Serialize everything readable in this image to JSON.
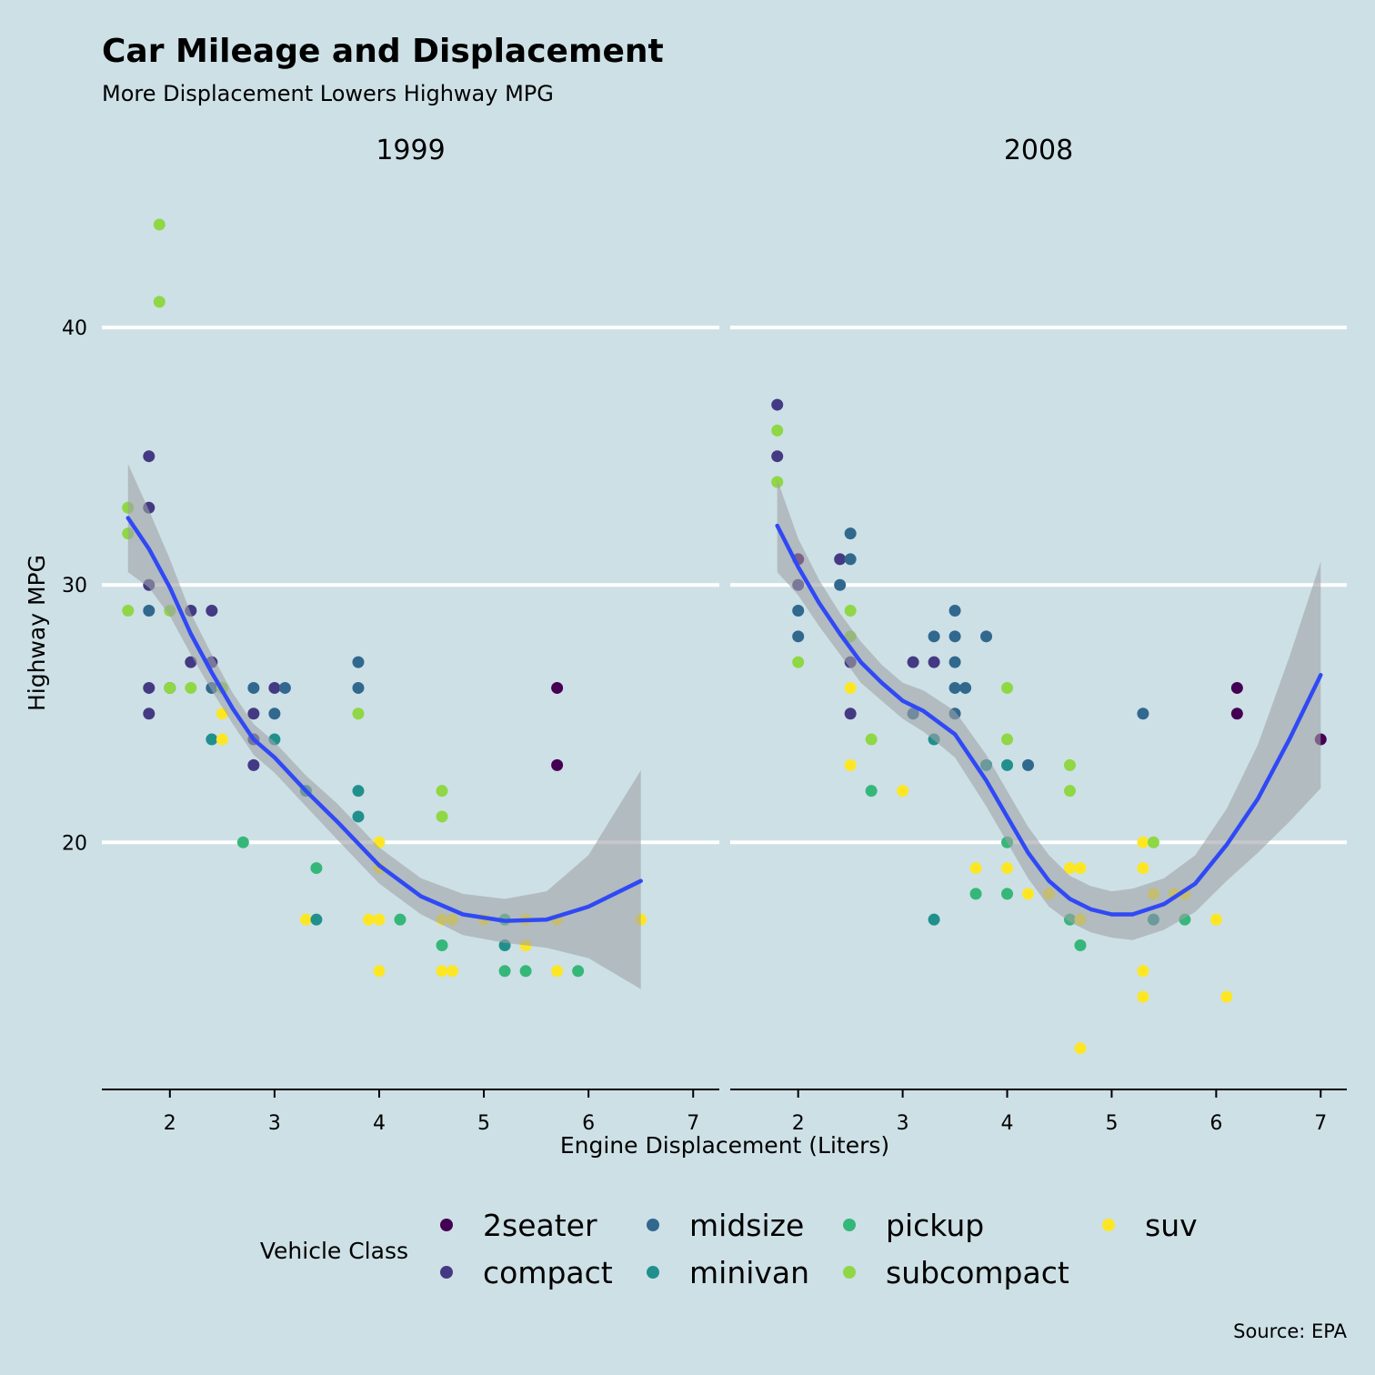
{
  "title": "Car Mileage and Displacement",
  "subtitle": "More Displacement Lowers Highway MPG",
  "caption": "Source: EPA",
  "legend": {
    "title": "Vehicle Class",
    "items": [
      {
        "label": "2seater",
        "color": "#440154"
      },
      {
        "label": "compact",
        "color": "#443a83"
      },
      {
        "label": "midsize",
        "color": "#31688e"
      },
      {
        "label": "minivan",
        "color": "#21908d"
      },
      {
        "label": "pickup",
        "color": "#35b779"
      },
      {
        "label": "subcompact",
        "color": "#8fd744"
      },
      {
        "label": "suv",
        "color": "#fde725"
      }
    ]
  },
  "colors": {
    "background": "#cde0e6",
    "gridline": "#ffffff",
    "smooth_line": "#3049f5",
    "ribbon": "#9ea2a6"
  },
  "chart_data": {
    "type": "scatter",
    "xlabel": "Engine Displacement (Liters)",
    "ylabel": "Highway MPG",
    "xlim": [
      1.35,
      7.25
    ],
    "ylim": [
      10.4,
      45.8
    ],
    "xticks": [
      2,
      3,
      4,
      5,
      6,
      7
    ],
    "yticks": [
      20,
      30,
      40
    ],
    "grid": "horizontal major",
    "legend_position": "bottom",
    "facets": [
      {
        "label": "1999",
        "points": [
          {
            "x": 1.6,
            "y": 33,
            "class": "subcompact"
          },
          {
            "x": 1.6,
            "y": 32,
            "class": "subcompact"
          },
          {
            "x": 1.6,
            "y": 29,
            "class": "subcompact"
          },
          {
            "x": 1.8,
            "y": 35,
            "class": "compact"
          },
          {
            "x": 1.8,
            "y": 33,
            "class": "compact"
          },
          {
            "x": 1.8,
            "y": 30,
            "class": "compact"
          },
          {
            "x": 1.8,
            "y": 29,
            "class": "midsize"
          },
          {
            "x": 1.8,
            "y": 26,
            "class": "compact"
          },
          {
            "x": 1.8,
            "y": 25,
            "class": "compact"
          },
          {
            "x": 1.9,
            "y": 44,
            "class": "subcompact"
          },
          {
            "x": 1.9,
            "y": 41,
            "class": "subcompact"
          },
          {
            "x": 2.0,
            "y": 29,
            "class": "subcompact"
          },
          {
            "x": 2.0,
            "y": 26,
            "class": "compact"
          },
          {
            "x": 2.0,
            "y": 26,
            "class": "subcompact"
          },
          {
            "x": 2.2,
            "y": 29,
            "class": "compact"
          },
          {
            "x": 2.2,
            "y": 27,
            "class": "compact"
          },
          {
            "x": 2.2,
            "y": 26,
            "class": "subcompact"
          },
          {
            "x": 2.4,
            "y": 29,
            "class": "compact"
          },
          {
            "x": 2.4,
            "y": 27,
            "class": "compact"
          },
          {
            "x": 2.4,
            "y": 26,
            "class": "midsize"
          },
          {
            "x": 2.4,
            "y": 24,
            "class": "minivan"
          },
          {
            "x": 2.5,
            "y": 26,
            "class": "subcompact"
          },
          {
            "x": 2.5,
            "y": 25,
            "class": "suv"
          },
          {
            "x": 2.5,
            "y": 24,
            "class": "suv"
          },
          {
            "x": 2.7,
            "y": 20,
            "class": "pickup"
          },
          {
            "x": 2.8,
            "y": 26,
            "class": "midsize"
          },
          {
            "x": 2.8,
            "y": 25,
            "class": "compact"
          },
          {
            "x": 2.8,
            "y": 24,
            "class": "compact"
          },
          {
            "x": 2.8,
            "y": 23,
            "class": "compact"
          },
          {
            "x": 3.0,
            "y": 26,
            "class": "compact"
          },
          {
            "x": 3.0,
            "y": 25,
            "class": "midsize"
          },
          {
            "x": 3.0,
            "y": 24,
            "class": "minivan"
          },
          {
            "x": 3.1,
            "y": 26,
            "class": "midsize"
          },
          {
            "x": 3.3,
            "y": 22,
            "class": "minivan"
          },
          {
            "x": 3.3,
            "y": 17,
            "class": "suv"
          },
          {
            "x": 3.4,
            "y": 19,
            "class": "pickup"
          },
          {
            "x": 3.4,
            "y": 17,
            "class": "minivan"
          },
          {
            "x": 3.8,
            "y": 27,
            "class": "midsize"
          },
          {
            "x": 3.8,
            "y": 26,
            "class": "midsize"
          },
          {
            "x": 3.8,
            "y": 25,
            "class": "subcompact"
          },
          {
            "x": 3.8,
            "y": 22,
            "class": "minivan"
          },
          {
            "x": 3.8,
            "y": 21,
            "class": "minivan"
          },
          {
            "x": 3.9,
            "y": 17,
            "class": "suv"
          },
          {
            "x": 4.0,
            "y": 20,
            "class": "suv"
          },
          {
            "x": 4.0,
            "y": 19,
            "class": "suv"
          },
          {
            "x": 4.0,
            "y": 17,
            "class": "suv"
          },
          {
            "x": 4.0,
            "y": 15,
            "class": "suv"
          },
          {
            "x": 4.2,
            "y": 17,
            "class": "pickup"
          },
          {
            "x": 4.6,
            "y": 22,
            "class": "subcompact"
          },
          {
            "x": 4.6,
            "y": 21,
            "class": "subcompact"
          },
          {
            "x": 4.6,
            "y": 17,
            "class": "suv"
          },
          {
            "x": 4.6,
            "y": 16,
            "class": "pickup"
          },
          {
            "x": 4.6,
            "y": 15,
            "class": "suv"
          },
          {
            "x": 4.7,
            "y": 17,
            "class": "suv"
          },
          {
            "x": 4.7,
            "y": 15,
            "class": "suv"
          },
          {
            "x": 5.0,
            "y": 17,
            "class": "suv"
          },
          {
            "x": 5.2,
            "y": 17,
            "class": "pickup"
          },
          {
            "x": 5.2,
            "y": 16,
            "class": "minivan"
          },
          {
            "x": 5.2,
            "y": 15,
            "class": "pickup"
          },
          {
            "x": 5.4,
            "y": 17,
            "class": "suv"
          },
          {
            "x": 5.4,
            "y": 16,
            "class": "suv"
          },
          {
            "x": 5.4,
            "y": 15,
            "class": "pickup"
          },
          {
            "x": 5.7,
            "y": 26,
            "class": "2seater"
          },
          {
            "x": 5.7,
            "y": 23,
            "class": "2seater"
          },
          {
            "x": 5.7,
            "y": 17,
            "class": "suv"
          },
          {
            "x": 5.7,
            "y": 15,
            "class": "suv"
          },
          {
            "x": 5.9,
            "y": 15,
            "class": "pickup"
          },
          {
            "x": 6.5,
            "y": 17,
            "class": "suv"
          }
        ],
        "smooth": {
          "x": [
            1.6,
            1.8,
            2.0,
            2.2,
            2.4,
            2.6,
            2.8,
            3.0,
            3.3,
            3.6,
            4.0,
            4.4,
            4.8,
            5.2,
            5.6,
            6.0,
            6.5
          ],
          "y": [
            32.6,
            31.4,
            29.9,
            28.1,
            26.6,
            25.2,
            24.0,
            23.3,
            22.0,
            20.8,
            19.1,
            17.9,
            17.2,
            16.95,
            17.0,
            17.5,
            18.5
          ],
          "lower": [
            30.5,
            29.9,
            28.8,
            27.3,
            25.9,
            24.6,
            23.4,
            22.7,
            21.4,
            20.1,
            18.4,
            17.2,
            16.4,
            16.1,
            15.9,
            15.5,
            14.3
          ],
          "upper": [
            34.7,
            32.9,
            31.0,
            28.9,
            27.3,
            25.8,
            24.6,
            23.9,
            22.6,
            21.5,
            19.8,
            18.6,
            18.0,
            17.8,
            18.1,
            19.5,
            22.8
          ]
        }
      },
      {
        "label": "2008",
        "points": [
          {
            "x": 1.8,
            "y": 37,
            "class": "compact"
          },
          {
            "x": 1.8,
            "y": 36,
            "class": "subcompact"
          },
          {
            "x": 1.8,
            "y": 35,
            "class": "compact"
          },
          {
            "x": 1.8,
            "y": 34,
            "class": "subcompact"
          },
          {
            "x": 2.0,
            "y": 31,
            "class": "2seater"
          },
          {
            "x": 2.0,
            "y": 30,
            "class": "compact"
          },
          {
            "x": 2.0,
            "y": 29,
            "class": "midsize"
          },
          {
            "x": 2.0,
            "y": 28,
            "class": "midsize"
          },
          {
            "x": 2.0,
            "y": 27,
            "class": "subcompact"
          },
          {
            "x": 2.4,
            "y": 31,
            "class": "compact"
          },
          {
            "x": 2.4,
            "y": 30,
            "class": "midsize"
          },
          {
            "x": 2.5,
            "y": 32,
            "class": "midsize"
          },
          {
            "x": 2.5,
            "y": 31,
            "class": "midsize"
          },
          {
            "x": 2.5,
            "y": 29,
            "class": "subcompact"
          },
          {
            "x": 2.5,
            "y": 28,
            "class": "subcompact"
          },
          {
            "x": 2.5,
            "y": 27,
            "class": "compact"
          },
          {
            "x": 2.5,
            "y": 26,
            "class": "suv"
          },
          {
            "x": 2.5,
            "y": 25,
            "class": "compact"
          },
          {
            "x": 2.5,
            "y": 23,
            "class": "suv"
          },
          {
            "x": 2.7,
            "y": 24,
            "class": "subcompact"
          },
          {
            "x": 2.7,
            "y": 22,
            "class": "pickup"
          },
          {
            "x": 3.0,
            "y": 22,
            "class": "suv"
          },
          {
            "x": 3.1,
            "y": 27,
            "class": "compact"
          },
          {
            "x": 3.1,
            "y": 25,
            "class": "midsize"
          },
          {
            "x": 3.3,
            "y": 28,
            "class": "midsize"
          },
          {
            "x": 3.3,
            "y": 27,
            "class": "compact"
          },
          {
            "x": 3.3,
            "y": 24,
            "class": "minivan"
          },
          {
            "x": 3.3,
            "y": 17,
            "class": "minivan"
          },
          {
            "x": 3.5,
            "y": 29,
            "class": "midsize"
          },
          {
            "x": 3.5,
            "y": 28,
            "class": "midsize"
          },
          {
            "x": 3.5,
            "y": 27,
            "class": "midsize"
          },
          {
            "x": 3.5,
            "y": 26,
            "class": "midsize"
          },
          {
            "x": 3.5,
            "y": 25,
            "class": "midsize"
          },
          {
            "x": 3.6,
            "y": 26,
            "class": "midsize"
          },
          {
            "x": 3.7,
            "y": 19,
            "class": "suv"
          },
          {
            "x": 3.7,
            "y": 18,
            "class": "pickup"
          },
          {
            "x": 3.8,
            "y": 28,
            "class": "midsize"
          },
          {
            "x": 3.8,
            "y": 23,
            "class": "minivan"
          },
          {
            "x": 4.0,
            "y": 26,
            "class": "subcompact"
          },
          {
            "x": 4.0,
            "y": 24,
            "class": "subcompact"
          },
          {
            "x": 4.0,
            "y": 23,
            "class": "minivan"
          },
          {
            "x": 4.0,
            "y": 20,
            "class": "pickup"
          },
          {
            "x": 4.0,
            "y": 19,
            "class": "suv"
          },
          {
            "x": 4.0,
            "y": 18,
            "class": "pickup"
          },
          {
            "x": 4.2,
            "y": 23,
            "class": "midsize"
          },
          {
            "x": 4.2,
            "y": 18,
            "class": "suv"
          },
          {
            "x": 4.4,
            "y": 18,
            "class": "suv"
          },
          {
            "x": 4.6,
            "y": 23,
            "class": "subcompact"
          },
          {
            "x": 4.6,
            "y": 22,
            "class": "subcompact"
          },
          {
            "x": 4.6,
            "y": 19,
            "class": "suv"
          },
          {
            "x": 4.6,
            "y": 17,
            "class": "pickup"
          },
          {
            "x": 4.7,
            "y": 19,
            "class": "suv"
          },
          {
            "x": 4.7,
            "y": 17,
            "class": "suv"
          },
          {
            "x": 4.7,
            "y": 16,
            "class": "pickup"
          },
          {
            "x": 4.7,
            "y": 12,
            "class": "suv"
          },
          {
            "x": 5.3,
            "y": 25,
            "class": "midsize"
          },
          {
            "x": 5.3,
            "y": 20,
            "class": "suv"
          },
          {
            "x": 5.3,
            "y": 19,
            "class": "suv"
          },
          {
            "x": 5.3,
            "y": 15,
            "class": "suv"
          },
          {
            "x": 5.3,
            "y": 14,
            "class": "suv"
          },
          {
            "x": 5.4,
            "y": 20,
            "class": "subcompact"
          },
          {
            "x": 5.4,
            "y": 18,
            "class": "suv"
          },
          {
            "x": 5.4,
            "y": 17,
            "class": "minivan"
          },
          {
            "x": 5.6,
            "y": 18,
            "class": "suv"
          },
          {
            "x": 5.7,
            "y": 18,
            "class": "suv"
          },
          {
            "x": 5.7,
            "y": 17,
            "class": "pickup"
          },
          {
            "x": 6.0,
            "y": 17,
            "class": "suv"
          },
          {
            "x": 6.1,
            "y": 14,
            "class": "suv"
          },
          {
            "x": 6.2,
            "y": 26,
            "class": "2seater"
          },
          {
            "x": 6.2,
            "y": 25,
            "class": "2seater"
          },
          {
            "x": 7.0,
            "y": 24,
            "class": "2seater"
          }
        ],
        "smooth": {
          "x": [
            1.8,
            2.0,
            2.2,
            2.4,
            2.6,
            2.8,
            3.0,
            3.2,
            3.5,
            3.8,
            4.0,
            4.2,
            4.4,
            4.6,
            4.8,
            5.0,
            5.2,
            5.5,
            5.8,
            6.1,
            6.4,
            6.7,
            7.0
          ],
          "y": [
            32.3,
            30.7,
            29.3,
            28.1,
            27.0,
            26.2,
            25.5,
            25.1,
            24.2,
            22.4,
            21.0,
            19.6,
            18.5,
            17.8,
            17.4,
            17.2,
            17.2,
            17.6,
            18.4,
            19.9,
            21.7,
            24.0,
            26.5
          ],
          "lower": [
            30.5,
            29.6,
            28.4,
            27.3,
            26.2,
            25.5,
            24.8,
            24.3,
            23.3,
            21.4,
            20.0,
            18.6,
            17.5,
            16.9,
            16.5,
            16.3,
            16.2,
            16.6,
            17.3,
            18.5,
            19.6,
            20.8,
            22.1
          ],
          "upper": [
            34.1,
            31.8,
            30.2,
            28.9,
            27.8,
            26.9,
            26.2,
            25.9,
            25.1,
            23.4,
            22.0,
            20.6,
            19.5,
            18.7,
            18.3,
            18.1,
            18.2,
            18.6,
            19.5,
            21.3,
            23.8,
            27.2,
            30.9
          ]
        }
      }
    ]
  }
}
